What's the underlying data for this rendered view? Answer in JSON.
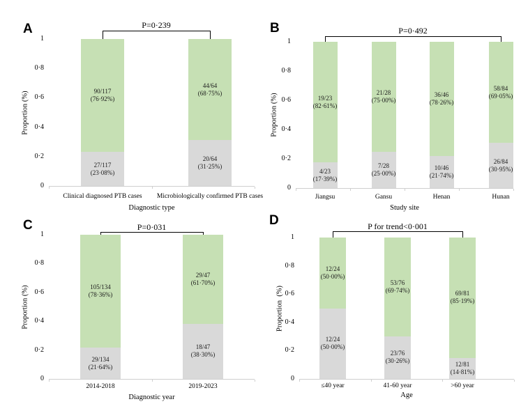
{
  "colors": {
    "green": "#c6e0b4",
    "gray": "#d9d9d9",
    "axis": "#cfcfcf",
    "bracket": "#000000",
    "text": "#000000",
    "background": "#ffffff"
  },
  "chart_data": [
    {
      "type": "bar",
      "panel": "A",
      "stacked": true,
      "title": "P=0·239",
      "xlabel": "Diagnostic type",
      "ylabel": "Proportion (%)",
      "ylim": [
        0,
        1
      ],
      "yticks": [
        0,
        0.2,
        0.4,
        0.6,
        0.8,
        1
      ],
      "ytick_labels": [
        "0",
        "0·2",
        "0·4",
        "0·6",
        "0·8",
        "1"
      ],
      "categories": [
        "Clinical diagnosed PTB cases",
        "Microbiologically confirmed PTB cases"
      ],
      "series": [
        {
          "name": "lower segment",
          "color_key": "gray",
          "values": [
            0.2308,
            0.3125
          ],
          "labels": [
            [
              "27/117",
              "(23·08%)"
            ],
            [
              "20/64",
              "(31·25%)"
            ]
          ]
        },
        {
          "name": "upper segment",
          "color_key": "green",
          "values": [
            0.7692,
            0.6875
          ],
          "labels": [
            [
              "90/117",
              "(76·92%)"
            ],
            [
              "44/64",
              "(68·75%)"
            ]
          ]
        }
      ]
    },
    {
      "type": "bar",
      "panel": "B",
      "stacked": true,
      "title": "P=0·492",
      "xlabel": "Study site",
      "ylabel": "Proportion (%)",
      "ylim": [
        0,
        1
      ],
      "yticks": [
        0,
        0.2,
        0.4,
        0.6,
        0.8,
        1
      ],
      "ytick_labels": [
        "0",
        "0·2",
        "0·4",
        "0·6",
        "0·8",
        "1"
      ],
      "categories": [
        "Jiangsu",
        "Gansu",
        "Henan",
        "Hunan"
      ],
      "series": [
        {
          "name": "lower segment",
          "color_key": "gray",
          "values": [
            0.1739,
            0.25,
            0.2174,
            0.3095
          ],
          "labels": [
            [
              "4/23",
              "(17·39%)"
            ],
            [
              "7/28",
              "(25·00%)"
            ],
            [
              "10/46",
              "(21·74%)"
            ],
            [
              "26/84",
              "(30·95%)"
            ]
          ]
        },
        {
          "name": "upper segment",
          "color_key": "green",
          "values": [
            0.8261,
            0.75,
            0.7826,
            0.6905
          ],
          "labels": [
            [
              "19/23",
              "(82·61%)"
            ],
            [
              "21/28",
              "(75·00%)"
            ],
            [
              "36/46",
              "(78·26%)"
            ],
            [
              "58/84",
              "(69·05%)"
            ]
          ]
        }
      ]
    },
    {
      "type": "bar",
      "panel": "C",
      "stacked": true,
      "title": "P=0·031",
      "xlabel": "Diagnostic year",
      "ylabel": "Proportion (%)",
      "ylim": [
        0,
        1
      ],
      "yticks": [
        0,
        0.2,
        0.4,
        0.6,
        0.8,
        1
      ],
      "ytick_labels": [
        "0",
        "0·2",
        "0·4",
        "0·6",
        "0·8",
        "1"
      ],
      "categories": [
        "2014-2018",
        "2019-2023"
      ],
      "series": [
        {
          "name": "lower segment",
          "color_key": "gray",
          "values": [
            0.2164,
            0.383
          ],
          "labels": [
            [
              "29/134",
              "(21·64%)"
            ],
            [
              "18/47",
              "(38·30%)"
            ]
          ]
        },
        {
          "name": "upper segment",
          "color_key": "green",
          "values": [
            0.7836,
            0.617
          ],
          "labels": [
            [
              "105/134",
              "(78·36%)"
            ],
            [
              "29/47",
              "(61·70%)"
            ]
          ]
        }
      ]
    },
    {
      "type": "bar",
      "panel": "D",
      "stacked": true,
      "title": "P for trend<0·001",
      "xlabel": "Age",
      "ylabel": "Proportion  (%)",
      "ylim": [
        0,
        1
      ],
      "yticks": [
        0,
        0.2,
        0.4,
        0.6,
        0.8,
        1
      ],
      "ytick_labels": [
        "0",
        "0·2",
        "0·4",
        "0·6",
        "0·8",
        "1"
      ],
      "categories": [
        "≤40 year",
        "41-60 year",
        ">60 year"
      ],
      "series": [
        {
          "name": "lower segment",
          "color_key": "gray",
          "values": [
            0.5,
            0.3026,
            0.1481
          ],
          "labels": [
            [
              "12/24",
              "(50·00%)"
            ],
            [
              "23/76",
              "(30·26%)"
            ],
            [
              "12/81",
              "(14·81%)"
            ]
          ]
        },
        {
          "name": "upper segment",
          "color_key": "green",
          "values": [
            0.5,
            0.6974,
            0.8519
          ],
          "labels": [
            [
              "12/24",
              "(50·00%)"
            ],
            [
              "53/76",
              "(69·74%)"
            ],
            [
              "69/81",
              "(85·19%)"
            ]
          ]
        }
      ]
    }
  ]
}
